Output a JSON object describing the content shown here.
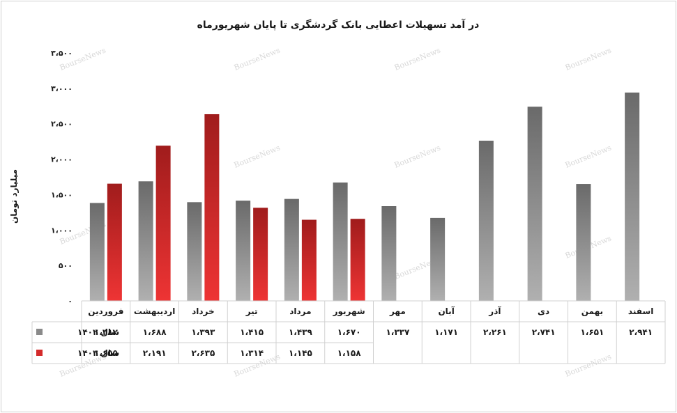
{
  "chart_data": {
    "type": "bar",
    "title": "در آمد تسهیلات اعطایی بانک گردشگری تا پایان شهریورماه",
    "ylabel": "میلیارد تومان",
    "ylim": [
      0,
      3500
    ],
    "yticks": [
      0,
      500,
      1000,
      1500,
      2000,
      2500,
      3000,
      3500
    ],
    "ytick_labels": [
      "۰",
      "۵۰۰",
      "۱،۰۰۰",
      "۱،۵۰۰",
      "۲،۰۰۰",
      "۲،۵۰۰",
      "۳،۰۰۰",
      "۳،۵۰۰"
    ],
    "categories": [
      "فروردین",
      "اردیبهشت",
      "خرداد",
      "تیر",
      "مرداد",
      "شهریور",
      "مهر",
      "آبان",
      "آذر",
      "دی",
      "بهمن",
      "اسفند"
    ],
    "series": [
      {
        "name": "سال ۱۴۰۲",
        "color": "#8a8a8a",
        "values": [
          1382,
          1688,
          1393,
          1415,
          1439,
          1670,
          1337,
          1171,
          2261,
          2741,
          1651,
          2941
        ],
        "labels": [
          "۱،۳۸۲",
          "۱،۶۸۸",
          "۱،۳۹۳",
          "۱،۴۱۵",
          "۱،۴۳۹",
          "۱،۶۷۰",
          "۱،۳۳۷",
          "۱،۱۷۱",
          "۲،۲۶۱",
          "۲،۷۴۱",
          "۱،۶۵۱",
          "۲،۹۴۱"
        ]
      },
      {
        "name": "سال ۱۴۰۳",
        "color": "#d42a2a",
        "values": [
          1655,
          2191,
          2635,
          1314,
          1145,
          1158,
          null,
          null,
          null,
          null,
          null,
          null
        ],
        "labels": [
          "۱،۶۵۵",
          "۲،۱۹۱",
          "۲،۶۳۵",
          "۱،۳۱۴",
          "۱،۱۴۵",
          "۱،۱۵۸",
          "",
          "",
          "",
          "",
          "",
          ""
        ]
      }
    ],
    "grid": false,
    "legend": "table-left",
    "watermark": "BourseNews"
  }
}
